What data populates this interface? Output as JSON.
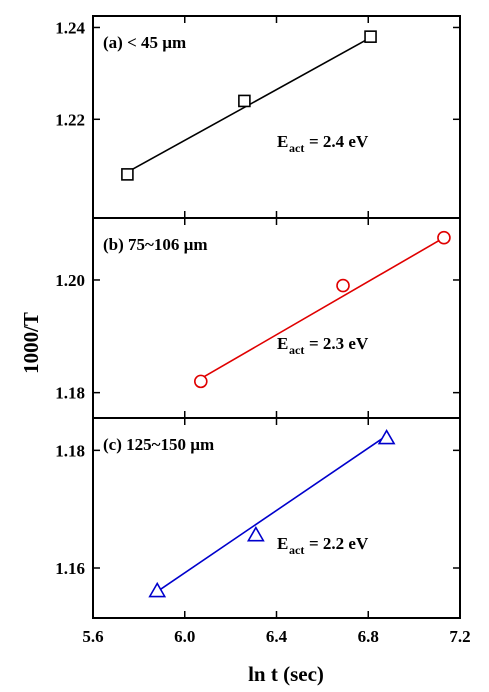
{
  "chart_data": [
    {
      "type": "scatter",
      "panel_label": "(a) < 45 µm",
      "marker": "square",
      "color": "#000000",
      "x": [
        5.75,
        6.26,
        6.81
      ],
      "y": [
        1.208,
        1.224,
        1.238
      ],
      "fit_x": [
        5.75,
        6.81
      ],
      "fit_y": [
        1.2085,
        1.2378
      ],
      "annotation": {
        "prefix": "E",
        "sub": "act",
        "text": " = 2.4 eV"
      },
      "ylim": [
        1.1985,
        1.2425
      ],
      "yticks": [
        "1.22",
        "1.24"
      ],
      "ytick_values": [
        1.22,
        1.24
      ]
    },
    {
      "type": "scatter",
      "panel_label": "(b) 75~106 µm",
      "marker": "circle",
      "color": "#e00000",
      "x": [
        6.07,
        6.69,
        7.13
      ],
      "y": [
        1.182,
        1.199,
        1.2075
      ],
      "fit_x": [
        6.07,
        7.13
      ],
      "fit_y": [
        1.1825,
        1.2075
      ],
      "annotation": {
        "prefix": "E",
        "sub": "act",
        "text": " = 2.3 eV"
      },
      "ylim": [
        1.1755,
        1.211
      ],
      "yticks": [
        "1.18",
        "1.20"
      ],
      "ytick_values": [
        1.18,
        1.2
      ]
    },
    {
      "type": "scatter",
      "panel_label": "(c) 125~150 µm",
      "marker": "triangle",
      "color": "#0000cc",
      "x": [
        5.88,
        6.31,
        6.88
      ],
      "y": [
        1.156,
        1.1655,
        1.182
      ],
      "fit_x": [
        5.88,
        6.88
      ],
      "fit_y": [
        1.156,
        1.1825
      ],
      "annotation": {
        "prefix": "E",
        "sub": "act",
        "text": " = 2.2 eV"
      },
      "ylim": [
        1.1515,
        1.1855
      ],
      "yticks": [
        "1.16",
        "1.18"
      ],
      "ytick_values": [
        1.16,
        1.18
      ]
    }
  ],
  "axes": {
    "xlabel": "ln t (sec)",
    "ylabel": "1000/T",
    "xlim": [
      5.6,
      7.2
    ],
    "xticks": [
      "5.6",
      "6.0",
      "6.4",
      "6.8",
      "7.2"
    ],
    "xtick_values": [
      5.6,
      6.0,
      6.4,
      6.8,
      7.2
    ]
  }
}
